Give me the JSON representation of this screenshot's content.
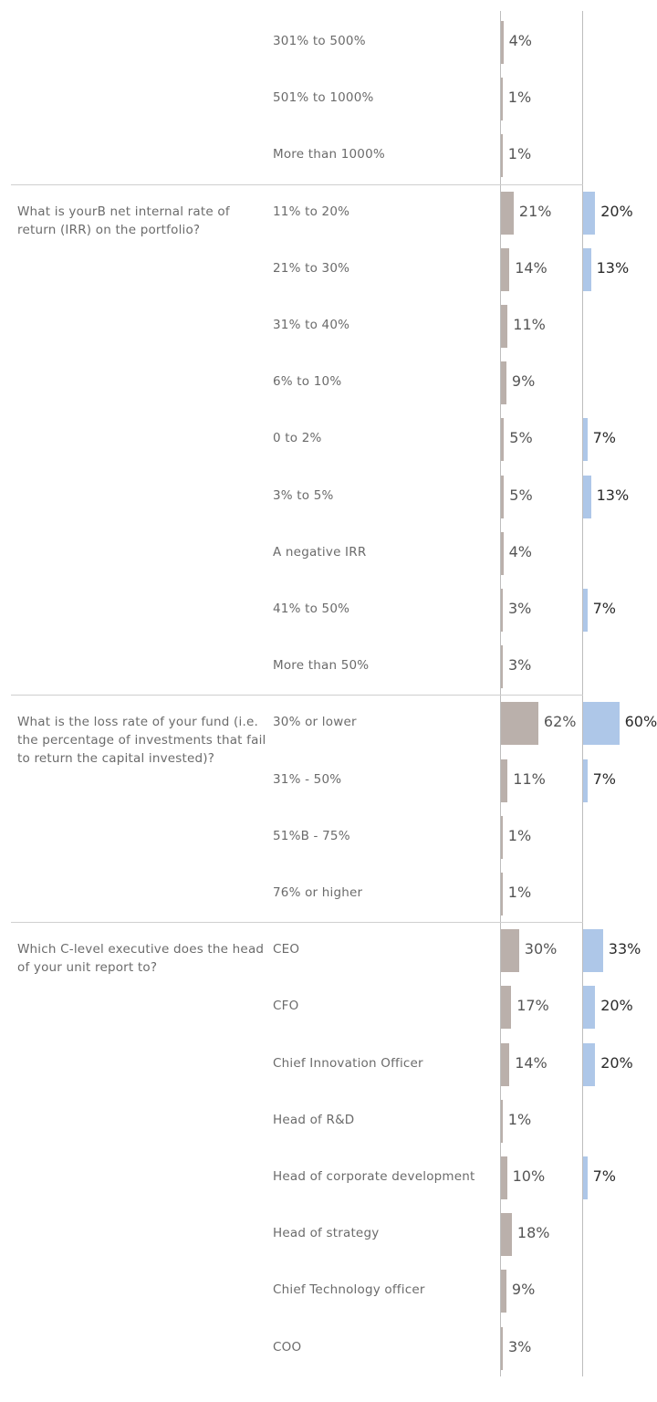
{
  "colors": {
    "series_a": "#bab0ab",
    "series_b": "#aec7e8"
  },
  "chart_data": {
    "type": "bar",
    "orientation": "horizontal",
    "grid": false,
    "groups": [
      {
        "question": "",
        "rows": [
          {
            "label": "301% to 500%",
            "a": 4,
            "b": null
          },
          {
            "label": "501% to 1000%",
            "a": 1,
            "b": null
          },
          {
            "label": "More than 1000%",
            "a": 1,
            "b": null
          }
        ]
      },
      {
        "question": "What is yourВ net internal rate of return (IRR) on the portfolio?",
        "rows": [
          {
            "label": "11% to 20%",
            "a": 21,
            "b": 20
          },
          {
            "label": "21% to 30%",
            "a": 14,
            "b": 13
          },
          {
            "label": "31% to 40%",
            "a": 11,
            "b": null
          },
          {
            "label": "6% to 10%",
            "a": 9,
            "b": null
          },
          {
            "label": "0 to 2%",
            "a": 5,
            "b": 7
          },
          {
            "label": "3% to 5%",
            "a": 5,
            "b": 13
          },
          {
            "label": "A negative IRR",
            "a": 4,
            "b": null
          },
          {
            "label": "41% to 50%",
            "a": 3,
            "b": 7
          },
          {
            "label": "More than 50%",
            "a": 3,
            "b": null
          }
        ]
      },
      {
        "question": "What is the loss rate of your fund (i.e. the percentage of investments that fail to return the capital invested)?",
        "rows": [
          {
            "label": "30% or lower",
            "a": 62,
            "b": 60
          },
          {
            "label": "31% - 50%",
            "a": 11,
            "b": 7
          },
          {
            "label": "51%В  - 75%",
            "a": 1,
            "b": null
          },
          {
            "label": "76% or higher",
            "a": 1,
            "b": null
          }
        ]
      },
      {
        "question": "Which C-level executive does the head of your unit report to?",
        "rows": [
          {
            "label": "CEO",
            "a": 30,
            "b": 33
          },
          {
            "label": "CFO",
            "a": 17,
            "b": 20
          },
          {
            "label": "Chief Innovation Officer",
            "a": 14,
            "b": 20
          },
          {
            "label": "Head of R&D",
            "a": 1,
            "b": null
          },
          {
            "label": "Head of corporate development",
            "a": 10,
            "b": 7
          },
          {
            "label": "Head of strategy",
            "a": 18,
            "b": null
          },
          {
            "label": "Chief Technology officer",
            "a": 9,
            "b": null
          },
          {
            "label": "COO",
            "a": 3,
            "b": null
          }
        ]
      }
    ]
  }
}
